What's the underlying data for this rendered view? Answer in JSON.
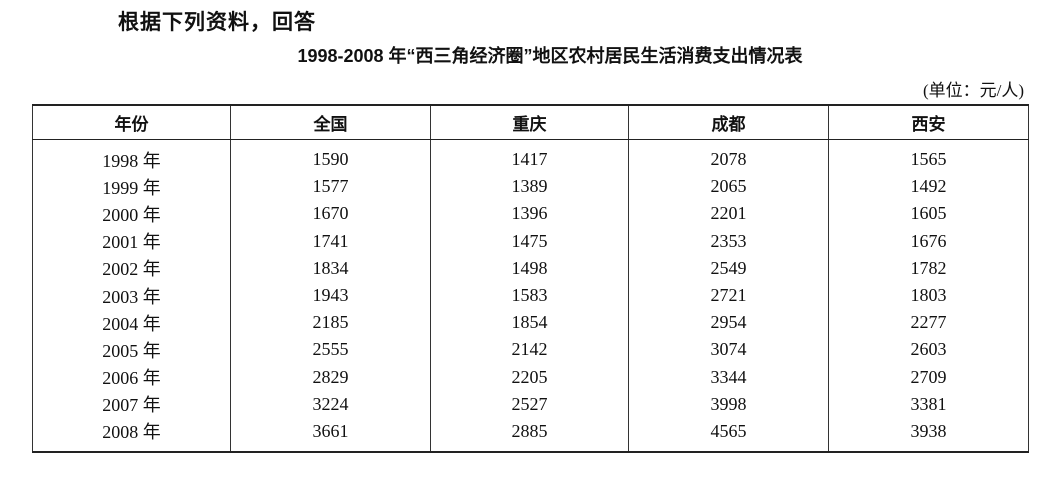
{
  "heading": "根据下列资料，回答",
  "title": "1998-2008 年“西三角经济圈”地区农村居民生活消费支出情况表",
  "unit": "(单位：元/人)",
  "table": {
    "headers": [
      "年份",
      "全国",
      "重庆",
      "成都",
      "西安"
    ],
    "rows": [
      [
        "1998 年",
        "1590",
        "1417",
        "2078",
        "1565"
      ],
      [
        "1999 年",
        "1577",
        "1389",
        "2065",
        "1492"
      ],
      [
        "2000 年",
        "1670",
        "1396",
        "2201",
        "1605"
      ],
      [
        "2001 年",
        "1741",
        "1475",
        "2353",
        "1676"
      ],
      [
        "2002 年",
        "1834",
        "1498",
        "2549",
        "1782"
      ],
      [
        "2003 年",
        "1943",
        "1583",
        "2721",
        "1803"
      ],
      [
        "2004 年",
        "2185",
        "1854",
        "2954",
        "2277"
      ],
      [
        "2005 年",
        "2555",
        "2142",
        "3074",
        "2603"
      ],
      [
        "2006 年",
        "2829",
        "2205",
        "3344",
        "2709"
      ],
      [
        "2007 年",
        "3224",
        "2527",
        "3998",
        "3381"
      ],
      [
        "2008 年",
        "3661",
        "2885",
        "4565",
        "3938"
      ]
    ]
  }
}
